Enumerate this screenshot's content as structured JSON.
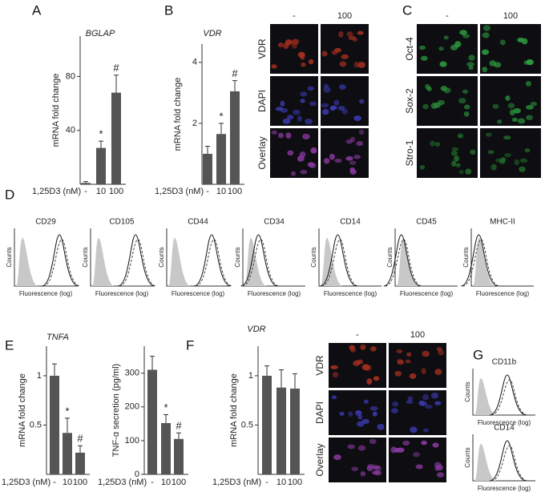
{
  "panel_labels": [
    "A",
    "B",
    "C",
    "D",
    "E",
    "F",
    "G"
  ],
  "chart_data": [
    {
      "type": "bar",
      "title": "BGLAP",
      "ylabel": "mRNA fold change",
      "xlabel": "1,25D3 (nM)",
      "categories": [
        "-",
        "10",
        "100"
      ],
      "values": [
        1,
        27,
        68
      ],
      "errors": [
        1,
        5,
        13
      ],
      "annotations": [
        null,
        "*",
        "#"
      ],
      "ylim": [
        0,
        110
      ],
      "yticks": [
        40,
        80
      ],
      "color": "#555555"
    },
    {
      "type": "bar",
      "title": "VDR",
      "ylabel": "mRNA fold change",
      "xlabel": "1,25D3 (nM)",
      "categories": [
        "-",
        "10",
        "100"
      ],
      "values": [
        1,
        1.65,
        3.05
      ],
      "errors": [
        0.25,
        0.35,
        0.35
      ],
      "annotations": [
        null,
        "*",
        "#"
      ],
      "ylim": [
        0,
        4.6
      ],
      "yticks": [
        2,
        4
      ],
      "color": "#555555"
    },
    {
      "type": "bar",
      "title": "TNFA",
      "ylabel": "mRNA fold change",
      "xlabel": "1,25D3 (nM)",
      "categories": [
        "-",
        "10",
        "100"
      ],
      "values": [
        1,
        0.42,
        0.22
      ],
      "errors": [
        0.12,
        0.15,
        0.07
      ],
      "annotations": [
        null,
        "*",
        "#"
      ],
      "ylim": [
        0,
        1.3
      ],
      "yticks": [
        0.5,
        1
      ],
      "color": "#555555"
    },
    {
      "type": "bar",
      "ylabel": "TNF-α secretion (pg/ml)",
      "xlabel": "1,25D3 (nM)",
      "categories": [
        "-",
        "10",
        "100"
      ],
      "values": [
        310,
        152,
        105
      ],
      "errors": [
        40,
        25,
        18
      ],
      "annotations": [
        null,
        "*",
        "#"
      ],
      "ylim": [
        0,
        380
      ],
      "yticks": [
        0,
        100,
        200,
        300
      ],
      "color": "#555555"
    },
    {
      "type": "bar",
      "title": "VDR",
      "ylabel": "mRNA fold change",
      "xlabel": "1,25D3 (nM)",
      "categories": [
        "-",
        "10",
        "100"
      ],
      "values": [
        1,
        0.88,
        0.87
      ],
      "errors": [
        0.1,
        0.18,
        0.15
      ],
      "annotations": [
        null,
        null,
        null
      ],
      "ylim": [
        0,
        1.3
      ],
      "yticks": [
        0.5,
        1
      ],
      "color": "#555555"
    }
  ],
  "micrographs": {
    "B": {
      "columns": [
        "-",
        "100"
      ],
      "rows": [
        "VDR",
        "DAPI",
        "Overlay"
      ]
    },
    "C": {
      "columns": [
        "-",
        "100"
      ],
      "rows": [
        "Oct-4",
        "Sox-2",
        "Stro-1"
      ]
    },
    "F": {
      "columns": [
        "-",
        "100"
      ],
      "rows": [
        "VDR",
        "DAPI",
        "Overlay"
      ]
    }
  },
  "flow": {
    "ylabel": "Counts",
    "xlabel": "Fluorescence (log)",
    "D": [
      "CD29",
      "CD105",
      "CD44",
      "CD34",
      "CD14",
      "CD45",
      "MHC-II"
    ],
    "G": [
      "CD11b",
      "CD14"
    ]
  }
}
